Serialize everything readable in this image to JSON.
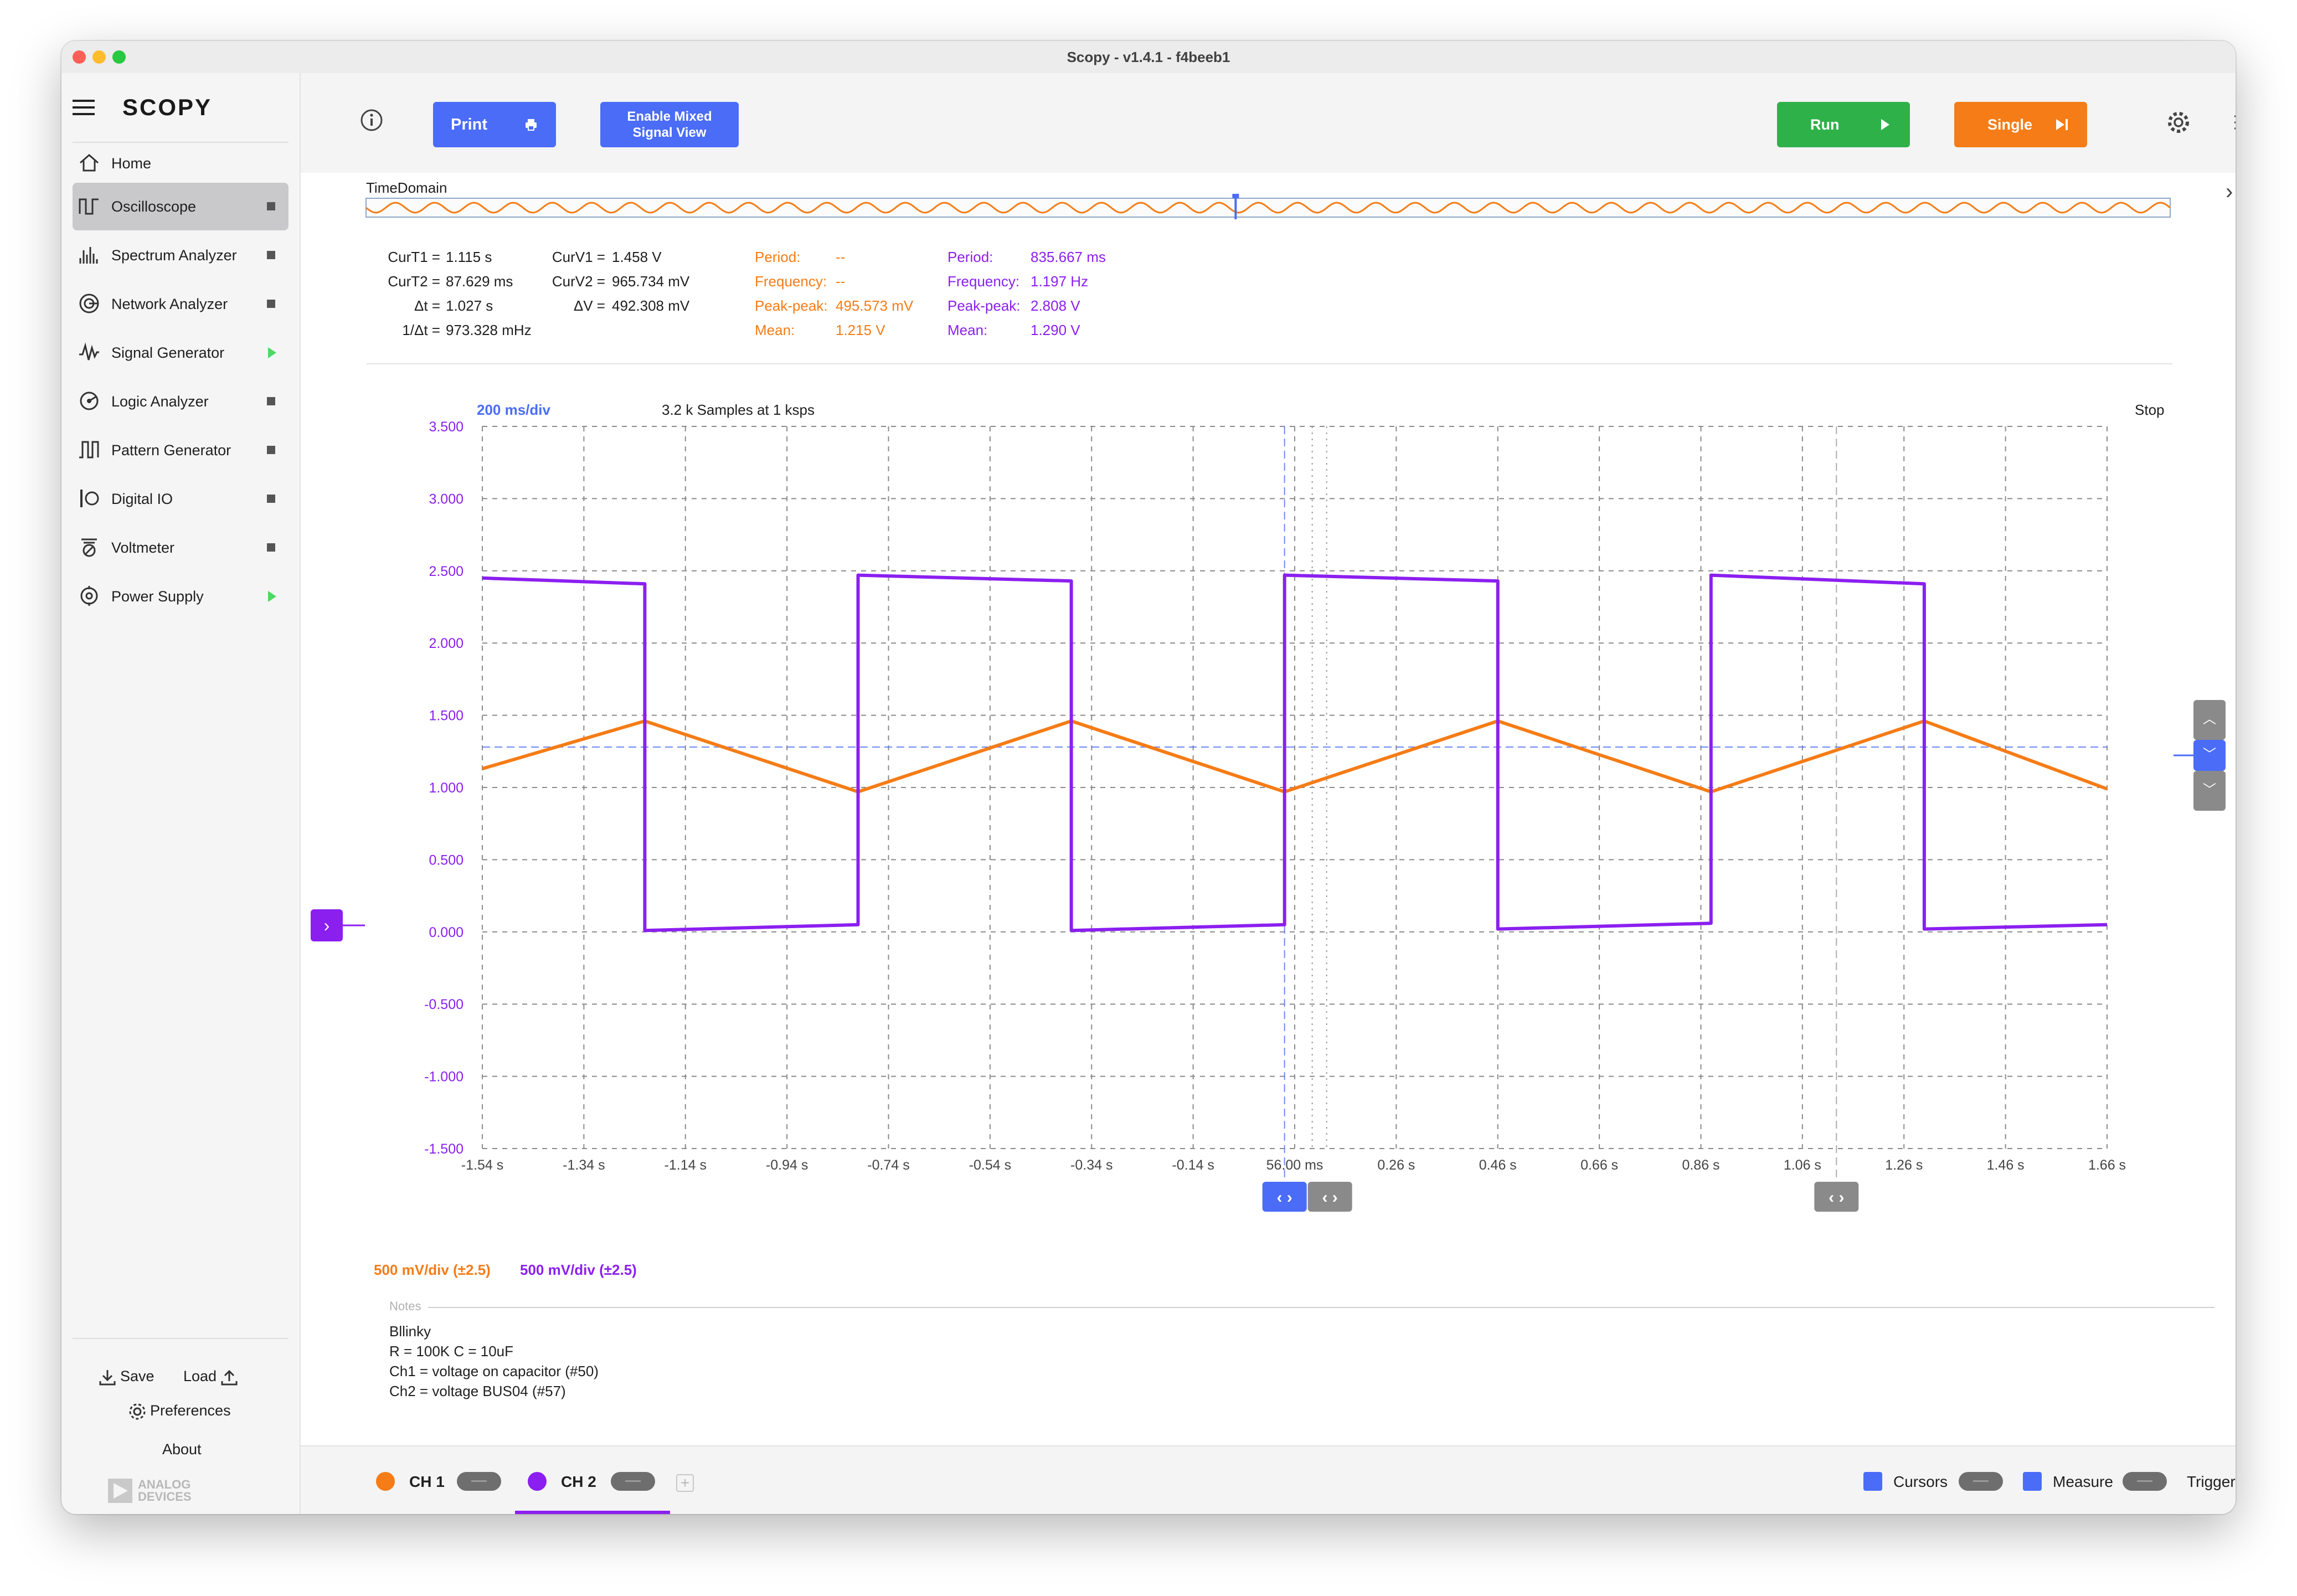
{
  "window": {
    "title": "Scopy - v1.4.1 - f4beeb1"
  },
  "sidebar": {
    "logo": "SCOPY",
    "home": "Home",
    "items": [
      {
        "label": "Oscilloscope",
        "icon": "oscilloscope-icon",
        "status": "stopped",
        "active": true
      },
      {
        "label": "Spectrum Analyzer",
        "icon": "spectrum-icon",
        "status": "stopped"
      },
      {
        "label": "Network Analyzer",
        "icon": "network-icon",
        "status": "stopped"
      },
      {
        "label": "Signal Generator",
        "icon": "signal-icon",
        "status": "running"
      },
      {
        "label": "Logic Analyzer",
        "icon": "logic-icon",
        "status": "stopped"
      },
      {
        "label": "Pattern Generator",
        "icon": "pattern-icon",
        "status": "stopped"
      },
      {
        "label": "Digital IO",
        "icon": "digital-io-icon",
        "status": "stopped"
      },
      {
        "label": "Voltmeter",
        "icon": "voltmeter-icon",
        "status": "stopped"
      },
      {
        "label": "Power Supply",
        "icon": "power-supply-icon",
        "status": "running"
      }
    ],
    "save": "Save",
    "load": "Load",
    "preferences": "Preferences",
    "about": "About",
    "brand": "ANALOG DEVICES"
  },
  "toolbar": {
    "print": "Print",
    "mixed_line1": "Enable Mixed",
    "mixed_line2": "Signal View",
    "run": "Run",
    "single": "Single"
  },
  "time_domain_label": "TimeDomain",
  "cursors": {
    "t_labels": [
      "CurT1 =",
      "CurT2 =",
      "Δt =",
      "1/Δt ="
    ],
    "t_values": [
      "1.115 s",
      "87.629 ms",
      "1.027 s",
      "973.328 mHz"
    ],
    "v_labels": [
      "CurV1 =",
      "CurV2 =",
      "ΔV ="
    ],
    "v_values": [
      "1.458 V",
      "965.734 mV",
      "492.308 mV"
    ]
  },
  "measure_ch1": {
    "labels": [
      "Period:",
      "Frequency:",
      "Peak-peak:",
      "Mean:"
    ],
    "values": [
      "--",
      "--",
      "495.573 mV",
      "1.215 V"
    ]
  },
  "measure_ch2": {
    "labels": [
      "Period:",
      "Frequency:",
      "Peak-peak:",
      "Mean:"
    ],
    "values": [
      "835.667 ms",
      "1.197 Hz",
      "2.808 V",
      "1.290 V"
    ]
  },
  "plot": {
    "timebase": "200 ms/div",
    "samples": "3.2 k Samples at 1 ksps",
    "status": "Stop"
  },
  "chart_data": {
    "type": "line",
    "title": "",
    "xlabel": "",
    "ylabel": "",
    "x_ticks": [
      "-1.54 s",
      "-1.34 s",
      "-1.14 s",
      "-0.94 s",
      "-0.74 s",
      "-0.54 s",
      "-0.34 s",
      "-0.14 s",
      "56.00 ms",
      "0.26 s",
      "0.46 s",
      "0.66 s",
      "0.86 s",
      "1.06 s",
      "1.26 s",
      "1.46 s",
      "1.66 s"
    ],
    "y_ticks": [
      "3.500",
      "3.000",
      "2.500",
      "2.000",
      "1.500",
      "1.000",
      "0.500",
      "0.000",
      "-0.500",
      "-1.000",
      "-1.500"
    ],
    "xlim": [
      -1.544,
      1.656
    ],
    "ylim": [
      -1.5,
      3.5
    ],
    "grid": true,
    "series": [
      {
        "name": "CH 1",
        "color": "#f57c16",
        "x": [
          -1.544,
          -1.224,
          -0.804,
          -0.384,
          0.036,
          0.456,
          0.876,
          1.296,
          1.656
        ],
        "y": [
          1.13,
          1.46,
          0.97,
          1.46,
          0.97,
          1.46,
          0.97,
          1.46,
          0.99
        ]
      },
      {
        "name": "CH 2",
        "color": "#8b1ff0",
        "x": [
          -1.544,
          -1.224,
          -1.224,
          -0.804,
          -0.804,
          -0.384,
          -0.384,
          0.036,
          0.036,
          0.456,
          0.456,
          0.876,
          0.876,
          1.296,
          1.296,
          1.656
        ],
        "y": [
          2.45,
          2.41,
          0.01,
          0.05,
          2.47,
          2.43,
          0.01,
          0.05,
          2.47,
          2.43,
          0.02,
          0.06,
          2.47,
          2.41,
          0.02,
          0.05
        ]
      }
    ],
    "cursor_x": [
      0.036,
      1.123
    ],
    "cursor_y": 1.28
  },
  "channel_scales": {
    "ch1": "500 mV/div (±2.5)",
    "ch2": "500 mV/div (±2.5)"
  },
  "notes": {
    "label": "Notes",
    "lines": [
      "Bllinky",
      "R = 100K C = 10uF",
      "Ch1 = voltage on capacitor (#50)",
      "Ch2 = voltage BUS04 (#57)"
    ]
  },
  "bottom": {
    "ch1": "CH 1",
    "ch2": "CH 2",
    "cursors": "Cursors",
    "measure": "Measure",
    "trigger": "Trigger"
  },
  "colors": {
    "ch1": "#f57c16",
    "ch2": "#8b1ff0",
    "accent": "#4a6cf7",
    "run": "#2fb14a",
    "single": "#f57c16"
  }
}
